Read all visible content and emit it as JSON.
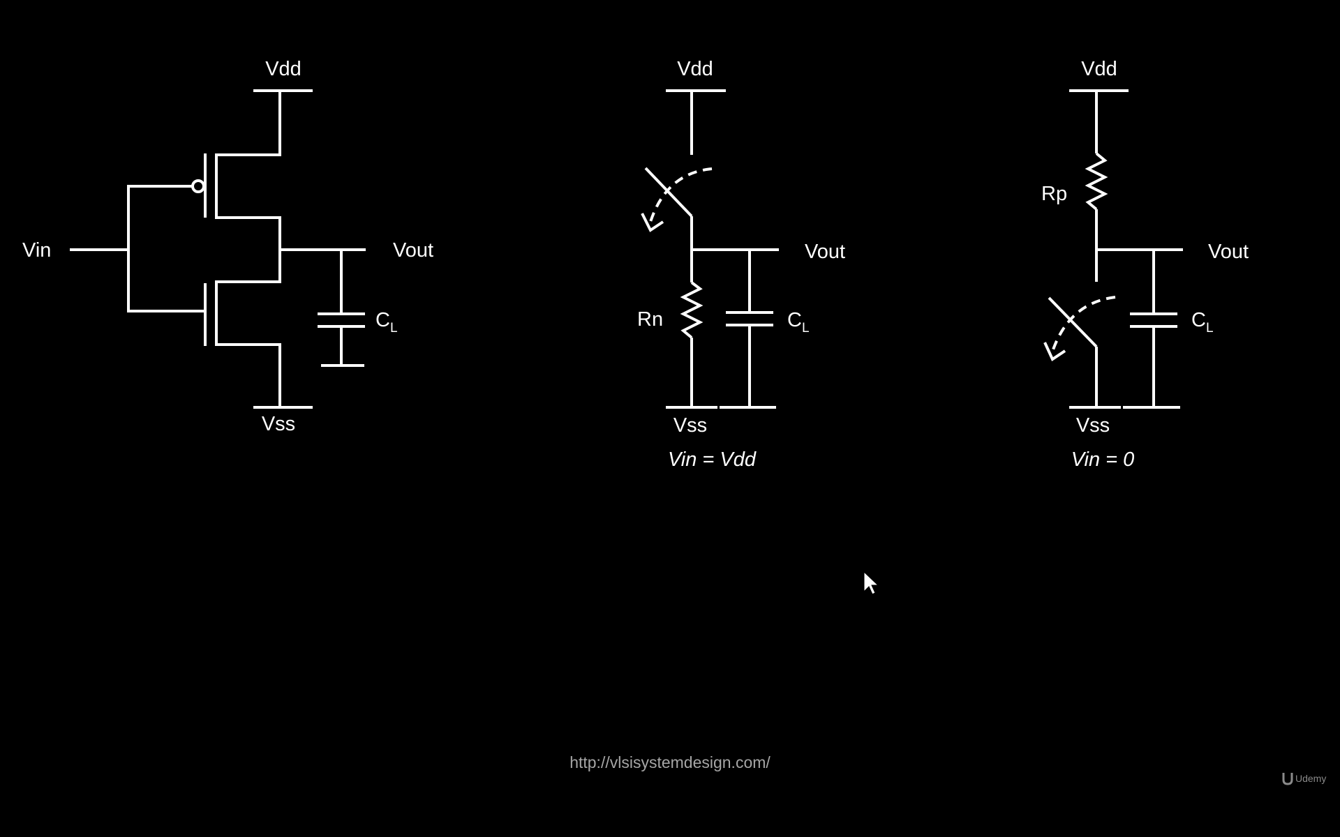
{
  "diagram": {
    "inverter": {
      "vdd": "Vdd",
      "vss": "Vss",
      "vin": "Vin",
      "vout": "Vout",
      "cl": "C",
      "cl_sub": "L"
    },
    "pulldown_model": {
      "vdd": "Vdd",
      "vss": "Vss",
      "vout": "Vout",
      "resistor": "Rn",
      "cl": "C",
      "cl_sub": "L",
      "condition": "Vin = Vdd"
    },
    "pullup_model": {
      "vdd": "Vdd",
      "vss": "Vss",
      "vout": "Vout",
      "resistor": "Rp",
      "cl": "C",
      "cl_sub": "L",
      "condition": "Vin = 0"
    }
  },
  "footer": {
    "url": "http://vlsisystemdesign.com/",
    "brand": "Udemy"
  },
  "colors": {
    "background": "#000000",
    "wire": "#ffffff",
    "url_text": "#a6a6a6"
  }
}
